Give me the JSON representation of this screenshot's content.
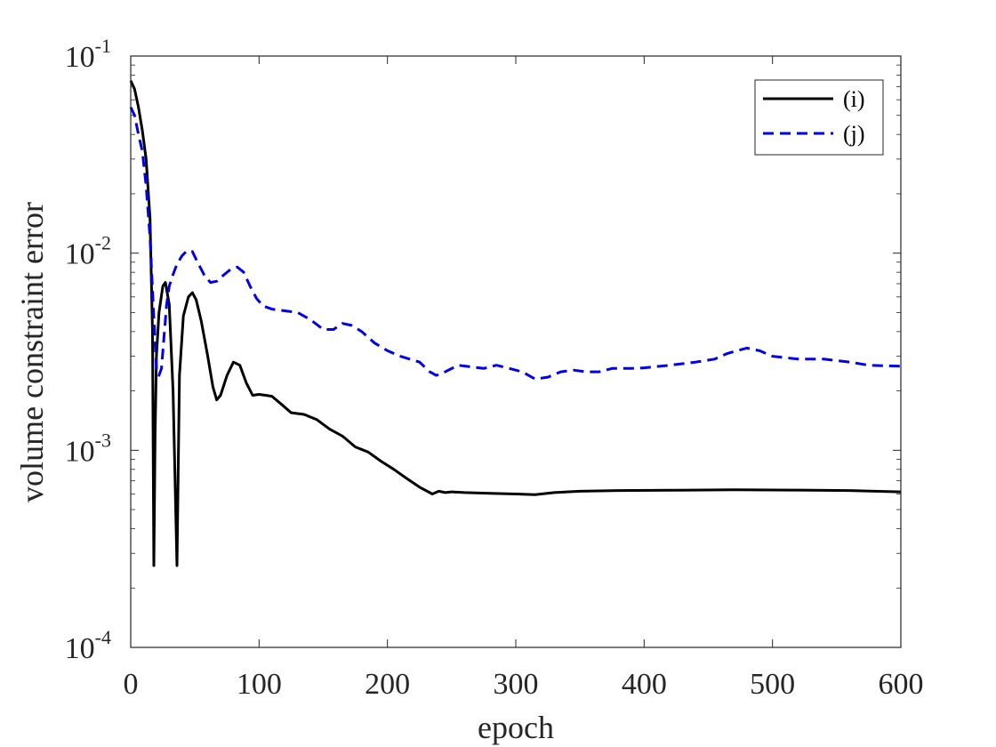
{
  "chart_data": {
    "type": "line",
    "title": "",
    "xlabel": "epoch",
    "ylabel": "volume constraint error",
    "xlim": [
      0,
      600
    ],
    "ylim": [
      0.0001,
      0.1
    ],
    "yscale": "log",
    "grid": false,
    "legend_position": "top-right",
    "x_ticks": [
      "0",
      "100",
      "200",
      "300",
      "400",
      "500",
      "600"
    ],
    "y_ticks": [
      {
        "base": "10",
        "exp": "-4"
      },
      {
        "base": "10",
        "exp": "-3"
      },
      {
        "base": "10",
        "exp": "-2"
      },
      {
        "base": "10",
        "exp": "-1"
      }
    ],
    "series": [
      {
        "name": "(i)",
        "color": "#000000",
        "dash": "solid",
        "points": [
          [
            0,
            0.075
          ],
          [
            3,
            0.068
          ],
          [
            6,
            0.055
          ],
          [
            9,
            0.042
          ],
          [
            12,
            0.03
          ],
          [
            15,
            0.015
          ],
          [
            17,
            0.004
          ],
          [
            18,
            0.00026
          ],
          [
            19,
            0.0012
          ],
          [
            20,
            0.003
          ],
          [
            22,
            0.005
          ],
          [
            25,
            0.0068
          ],
          [
            27,
            0.0071
          ],
          [
            30,
            0.0055
          ],
          [
            33,
            0.002
          ],
          [
            36,
            0.00026
          ],
          [
            38,
            0.0024
          ],
          [
            41,
            0.0048
          ],
          [
            45,
            0.006
          ],
          [
            48,
            0.0063
          ],
          [
            51,
            0.0058
          ],
          [
            55,
            0.0045
          ],
          [
            60,
            0.003
          ],
          [
            64,
            0.0021
          ],
          [
            67,
            0.0018
          ],
          [
            70,
            0.0019
          ],
          [
            75,
            0.0024
          ],
          [
            80,
            0.0028
          ],
          [
            85,
            0.0027
          ],
          [
            90,
            0.0022
          ],
          [
            95,
            0.0019
          ],
          [
            100,
            0.00192
          ],
          [
            105,
            0.0019
          ],
          [
            110,
            0.00188
          ],
          [
            118,
            0.0017
          ],
          [
            125,
            0.00155
          ],
          [
            135,
            0.00152
          ],
          [
            145,
            0.00143
          ],
          [
            155,
            0.00128
          ],
          [
            165,
            0.00118
          ],
          [
            175,
            0.00104
          ],
          [
            185,
            0.00098
          ],
          [
            195,
            0.00088
          ],
          [
            205,
            0.0008
          ],
          [
            215,
            0.00072
          ],
          [
            225,
            0.00065
          ],
          [
            235,
            0.0006
          ],
          [
            240,
            0.00062
          ],
          [
            245,
            0.00061
          ],
          [
            250,
            0.000615
          ],
          [
            260,
            0.00061
          ],
          [
            280,
            0.000605
          ],
          [
            300,
            0.0006
          ],
          [
            315,
            0.000595
          ],
          [
            330,
            0.00061
          ],
          [
            350,
            0.00062
          ],
          [
            380,
            0.000625
          ],
          [
            420,
            0.000627
          ],
          [
            470,
            0.00063
          ],
          [
            520,
            0.000628
          ],
          [
            560,
            0.000625
          ],
          [
            600,
            0.000615
          ]
        ]
      },
      {
        "name": "(j)",
        "color": "#0000ee",
        "dash": "dashed",
        "points": [
          [
            0,
            0.055
          ],
          [
            3,
            0.05
          ],
          [
            6,
            0.04
          ],
          [
            9,
            0.033
          ],
          [
            12,
            0.022
          ],
          [
            15,
            0.012
          ],
          [
            17,
            0.0065
          ],
          [
            19,
            0.0035
          ],
          [
            20,
            0.0026
          ],
          [
            22,
            0.0024
          ],
          [
            24,
            0.0026
          ],
          [
            26,
            0.0038
          ],
          [
            28,
            0.0055
          ],
          [
            30,
            0.0068
          ],
          [
            33,
            0.0078
          ],
          [
            36,
            0.0088
          ],
          [
            40,
            0.0097
          ],
          [
            44,
            0.0103
          ],
          [
            48,
            0.0102
          ],
          [
            52,
            0.009
          ],
          [
            57,
            0.0078
          ],
          [
            62,
            0.0071
          ],
          [
            67,
            0.0072
          ],
          [
            72,
            0.0077
          ],
          [
            78,
            0.0083
          ],
          [
            83,
            0.0085
          ],
          [
            88,
            0.008
          ],
          [
            93,
            0.0068
          ],
          [
            98,
            0.0059
          ],
          [
            103,
            0.0054
          ],
          [
            110,
            0.0052
          ],
          [
            120,
            0.0051
          ],
          [
            130,
            0.005
          ],
          [
            140,
            0.0046
          ],
          [
            150,
            0.0041
          ],
          [
            158,
            0.0041
          ],
          [
            165,
            0.0044
          ],
          [
            172,
            0.0043
          ],
          [
            180,
            0.004
          ],
          [
            190,
            0.0035
          ],
          [
            200,
            0.0032
          ],
          [
            210,
            0.003
          ],
          [
            225,
            0.0028
          ],
          [
            233,
            0.0025
          ],
          [
            238,
            0.0024
          ],
          [
            245,
            0.0025
          ],
          [
            255,
            0.0027
          ],
          [
            265,
            0.00265
          ],
          [
            275,
            0.0026
          ],
          [
            285,
            0.0027
          ],
          [
            295,
            0.0026
          ],
          [
            305,
            0.0025
          ],
          [
            315,
            0.0023
          ],
          [
            325,
            0.00235
          ],
          [
            335,
            0.0025
          ],
          [
            345,
            0.00255
          ],
          [
            355,
            0.0025
          ],
          [
            365,
            0.0025
          ],
          [
            375,
            0.0026
          ],
          [
            390,
            0.0026
          ],
          [
            400,
            0.00262
          ],
          [
            420,
            0.0027
          ],
          [
            440,
            0.0028
          ],
          [
            455,
            0.0029
          ],
          [
            465,
            0.0031
          ],
          [
            480,
            0.0033
          ],
          [
            490,
            0.0032
          ],
          [
            500,
            0.003
          ],
          [
            520,
            0.0029
          ],
          [
            540,
            0.0029
          ],
          [
            560,
            0.0028
          ],
          [
            575,
            0.0027
          ],
          [
            590,
            0.00268
          ],
          [
            600,
            0.00267
          ]
        ]
      }
    ]
  }
}
